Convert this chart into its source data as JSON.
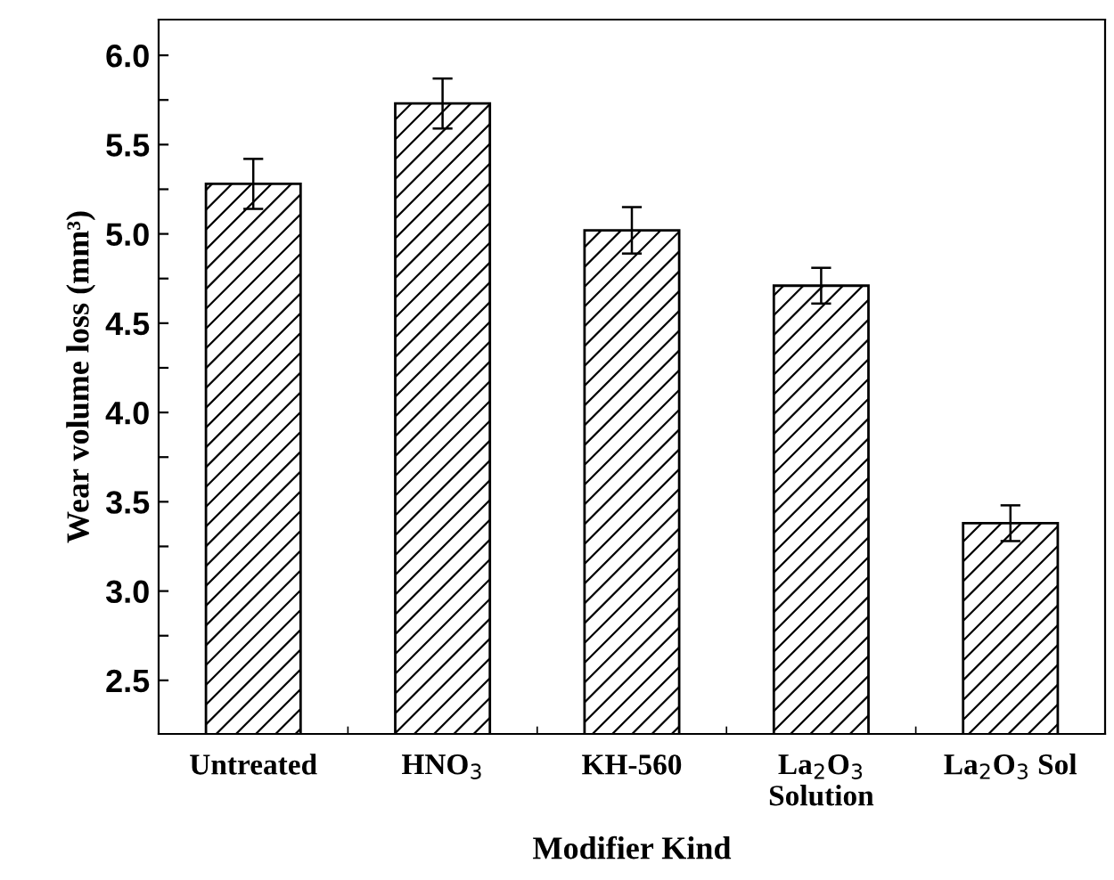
{
  "chart_data": {
    "type": "bar",
    "xlabel": "Modifier Kind",
    "ylabel": "Wear volume loss (mm³)",
    "categories": [
      "Untreated",
      "HNO$_{3}$",
      "KH-560",
      "La$_{2}$O$_{3}$\nSolution",
      "La$_{2}$O$_{3}$ Sol"
    ],
    "values": [
      5.28,
      5.73,
      5.02,
      4.71,
      3.38
    ],
    "errors": [
      0.14,
      0.14,
      0.13,
      0.1,
      0.1
    ],
    "color": "#000000",
    "ylim": [
      2.2,
      6.2
    ],
    "yticks": [
      {
        "value": 2.5,
        "label": "2.5"
      },
      {
        "value": 2.75,
        "label": null
      },
      {
        "value": 3,
        "label": "3.0"
      },
      {
        "value": 3.25,
        "label": null
      },
      {
        "value": 3.5,
        "label": "3.5"
      },
      {
        "value": 3.75,
        "label": null
      },
      {
        "value": 4,
        "label": "4.0"
      },
      {
        "value": 4.25,
        "label": null
      },
      {
        "value": 4.5,
        "label": "4.5"
      },
      {
        "value": 4.75,
        "label": null
      },
      {
        "value": 5,
        "label": "5.0"
      },
      {
        "value": 5.25,
        "label": null
      },
      {
        "value": 5.5,
        "label": "5.5"
      },
      {
        "value": 5.75,
        "label": null
      },
      {
        "value": 6,
        "label": "6.0"
      }
    ],
    "grid": false,
    "legend": false
  }
}
